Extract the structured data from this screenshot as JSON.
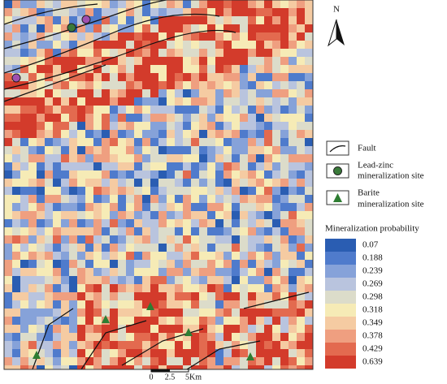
{
  "north_arrow": {
    "label": "N"
  },
  "legend": {
    "fault": {
      "label": "Fault"
    },
    "lead_zinc": {
      "lines": [
        "Lead-zinc",
        "mineralization site"
      ]
    },
    "barite": {
      "lines": [
        "Barite",
        "mineralization site"
      ]
    }
  },
  "probability_legend": {
    "title": "Mineralization probability",
    "classes": [
      {
        "label": "0.07",
        "color": "#2a5db2"
      },
      {
        "label": "0.188",
        "color": "#4f7bcc"
      },
      {
        "label": "0.239",
        "color": "#86a2d9"
      },
      {
        "label": "0.269",
        "color": "#b9c4de"
      },
      {
        "label": "0.298",
        "color": "#dcdcca"
      },
      {
        "label": "0.318",
        "color": "#f6ebb6"
      },
      {
        "label": "0.349",
        "color": "#f5cba2"
      },
      {
        "label": "0.378",
        "color": "#ef9f80"
      },
      {
        "label": "0.429",
        "color": "#e36a4f"
      },
      {
        "label": "0.639",
        "color": "#d33b2b"
      }
    ]
  },
  "scale_bar": {
    "labels": [
      "0",
      "2.5",
      "5Km"
    ]
  }
}
